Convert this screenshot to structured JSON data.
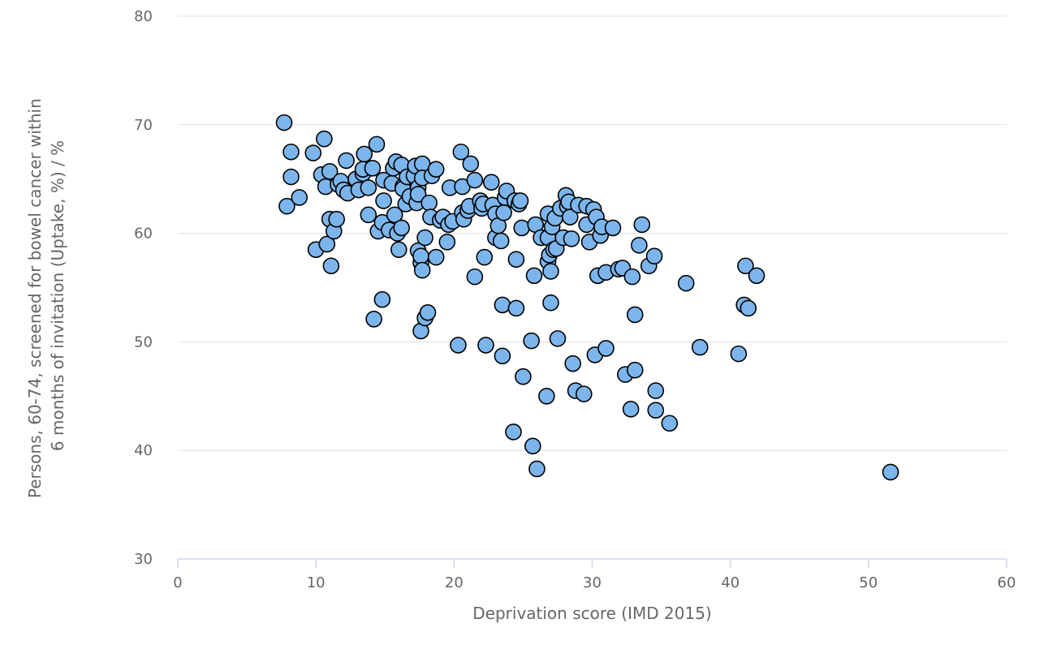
{
  "chart_data": {
    "type": "scatter",
    "title": "",
    "xlabel": "Deprivation score (IMD 2015)",
    "ylabel_lines": [
      "Persons, 60-74, screened for bowel cancer within",
      "6 months of invitation (Uptake, %) / %"
    ],
    "xlim": [
      0,
      60
    ],
    "ylim": [
      30,
      80
    ],
    "x_ticks": [
      "0",
      "10",
      "20",
      "30",
      "40",
      "50",
      "60"
    ],
    "y_ticks": [
      "30",
      "40",
      "50",
      "60",
      "70",
      "80"
    ],
    "grid": "horizontal",
    "legend": "none",
    "series": [
      {
        "color": "#7cb5ec",
        "points": [
          [
            7.7,
            70.2
          ],
          [
            7.9,
            62.5
          ],
          [
            8.2,
            67.5
          ],
          [
            8.2,
            65.2
          ],
          [
            8.8,
            63.3
          ],
          [
            9.8,
            67.4
          ],
          [
            10.0,
            58.5
          ],
          [
            10.4,
            65.4
          ],
          [
            10.6,
            68.7
          ],
          [
            10.7,
            64.3
          ],
          [
            10.8,
            59.0
          ],
          [
            11.0,
            65.7
          ],
          [
            11.0,
            61.3
          ],
          [
            11.1,
            57.0
          ],
          [
            11.3,
            60.2
          ],
          [
            11.6,
            64.5
          ],
          [
            11.8,
            64.8
          ],
          [
            11.5,
            61.3
          ],
          [
            12.0,
            64.0
          ],
          [
            12.2,
            66.7
          ],
          [
            12.3,
            63.7
          ],
          [
            12.9,
            65.0
          ],
          [
            13.1,
            64.0
          ],
          [
            13.4,
            65.5
          ],
          [
            13.5,
            67.3
          ],
          [
            13.4,
            65.9
          ],
          [
            13.8,
            61.7
          ],
          [
            13.8,
            64.2
          ],
          [
            14.1,
            66.0
          ],
          [
            14.2,
            52.1
          ],
          [
            14.4,
            68.2
          ],
          [
            14.5,
            60.2
          ],
          [
            14.8,
            61.0
          ],
          [
            14.8,
            53.9
          ],
          [
            14.9,
            63.0
          ],
          [
            14.9,
            64.9
          ],
          [
            15.3,
            60.3
          ],
          [
            15.5,
            64.6
          ],
          [
            15.6,
            66.0
          ],
          [
            15.7,
            61.7
          ],
          [
            15.8,
            66.6
          ],
          [
            15.9,
            60.0
          ],
          [
            16.0,
            58.5
          ],
          [
            16.2,
            66.3
          ],
          [
            16.2,
            60.5
          ],
          [
            16.3,
            64.3
          ],
          [
            16.3,
            64.1
          ],
          [
            16.5,
            62.7
          ],
          [
            16.6,
            65.2
          ],
          [
            16.8,
            63.4
          ],
          [
            17.1,
            65.3
          ],
          [
            17.2,
            66.2
          ],
          [
            17.3,
            62.8
          ],
          [
            17.4,
            64.2
          ],
          [
            17.4,
            63.6
          ],
          [
            17.4,
            58.4
          ],
          [
            17.6,
            57.3
          ],
          [
            17.6,
            57.9
          ],
          [
            17.7,
            56.6
          ],
          [
            17.7,
            66.4
          ],
          [
            17.7,
            65.1
          ],
          [
            17.6,
            51.0
          ],
          [
            17.9,
            52.2
          ],
          [
            17.9,
            59.6
          ],
          [
            18.1,
            52.7
          ],
          [
            18.2,
            62.8
          ],
          [
            18.3,
            61.5
          ],
          [
            18.4,
            65.3
          ],
          [
            18.7,
            65.9
          ],
          [
            18.7,
            57.8
          ],
          [
            19.0,
            61.2
          ],
          [
            19.2,
            61.5
          ],
          [
            19.5,
            59.2
          ],
          [
            19.6,
            60.8
          ],
          [
            19.7,
            64.2
          ],
          [
            19.9,
            61.1
          ],
          [
            20.3,
            49.7
          ],
          [
            20.5,
            67.5
          ],
          [
            20.6,
            64.3
          ],
          [
            20.6,
            61.9
          ],
          [
            20.7,
            61.3
          ],
          [
            21.0,
            62.1
          ],
          [
            21.1,
            62.5
          ],
          [
            21.2,
            66.4
          ],
          [
            21.5,
            56.0
          ],
          [
            21.5,
            64.9
          ],
          [
            21.9,
            63.0
          ],
          [
            22.0,
            62.3
          ],
          [
            22.1,
            62.7
          ],
          [
            22.2,
            57.8
          ],
          [
            22.3,
            49.7
          ],
          [
            22.7,
            64.7
          ],
          [
            22.8,
            62.6
          ],
          [
            23.0,
            61.8
          ],
          [
            23.0,
            59.6
          ],
          [
            23.2,
            60.7
          ],
          [
            23.4,
            59.3
          ],
          [
            23.5,
            53.4
          ],
          [
            23.5,
            48.7
          ],
          [
            23.6,
            61.9
          ],
          [
            23.7,
            63.3
          ],
          [
            23.8,
            63.9
          ],
          [
            24.3,
            41.7
          ],
          [
            24.4,
            63.0
          ],
          [
            24.5,
            57.6
          ],
          [
            24.5,
            53.1
          ],
          [
            24.7,
            62.7
          ],
          [
            24.8,
            63.0
          ],
          [
            24.9,
            60.5
          ],
          [
            25.0,
            46.8
          ],
          [
            25.6,
            50.1
          ],
          [
            25.7,
            40.4
          ],
          [
            25.8,
            56.1
          ],
          [
            25.9,
            60.8
          ],
          [
            26.0,
            38.3
          ],
          [
            26.3,
            59.6
          ],
          [
            26.7,
            45.0
          ],
          [
            26.8,
            61.8
          ],
          [
            26.8,
            59.6
          ],
          [
            26.8,
            57.4
          ],
          [
            26.9,
            58.0
          ],
          [
            27.0,
            53.6
          ],
          [
            27.0,
            56.5
          ],
          [
            27.1,
            60.6
          ],
          [
            27.2,
            58.5
          ],
          [
            27.3,
            61.4
          ],
          [
            27.4,
            58.6
          ],
          [
            27.5,
            50.3
          ],
          [
            27.7,
            62.3
          ],
          [
            27.9,
            59.6
          ],
          [
            28.1,
            63.5
          ],
          [
            28.2,
            62.5
          ],
          [
            28.3,
            62.9
          ],
          [
            28.4,
            61.5
          ],
          [
            28.5,
            59.5
          ],
          [
            28.6,
            48.0
          ],
          [
            28.8,
            45.5
          ],
          [
            29.0,
            62.6
          ],
          [
            29.4,
            45.2
          ],
          [
            29.6,
            62.5
          ],
          [
            29.6,
            60.8
          ],
          [
            29.8,
            59.2
          ],
          [
            30.1,
            62.2
          ],
          [
            30.2,
            48.8
          ],
          [
            30.3,
            61.5
          ],
          [
            30.4,
            56.1
          ],
          [
            30.6,
            59.8
          ],
          [
            30.7,
            60.6
          ],
          [
            31.0,
            49.4
          ],
          [
            31.0,
            56.4
          ],
          [
            31.5,
            60.5
          ],
          [
            31.9,
            56.7
          ],
          [
            32.2,
            56.8
          ],
          [
            32.4,
            47.0
          ],
          [
            32.8,
            43.8
          ],
          [
            32.9,
            56.0
          ],
          [
            33.1,
            52.5
          ],
          [
            33.1,
            47.4
          ],
          [
            33.4,
            58.9
          ],
          [
            33.6,
            60.8
          ],
          [
            34.1,
            57.0
          ],
          [
            34.5,
            57.9
          ],
          [
            34.6,
            45.5
          ],
          [
            34.6,
            43.7
          ],
          [
            35.6,
            42.5
          ],
          [
            36.8,
            55.4
          ],
          [
            37.8,
            49.5
          ],
          [
            40.6,
            48.9
          ],
          [
            41.0,
            53.4
          ],
          [
            41.1,
            57.0
          ],
          [
            41.3,
            53.1
          ],
          [
            41.9,
            56.1
          ],
          [
            51.6,
            38.0
          ]
        ]
      }
    ]
  }
}
